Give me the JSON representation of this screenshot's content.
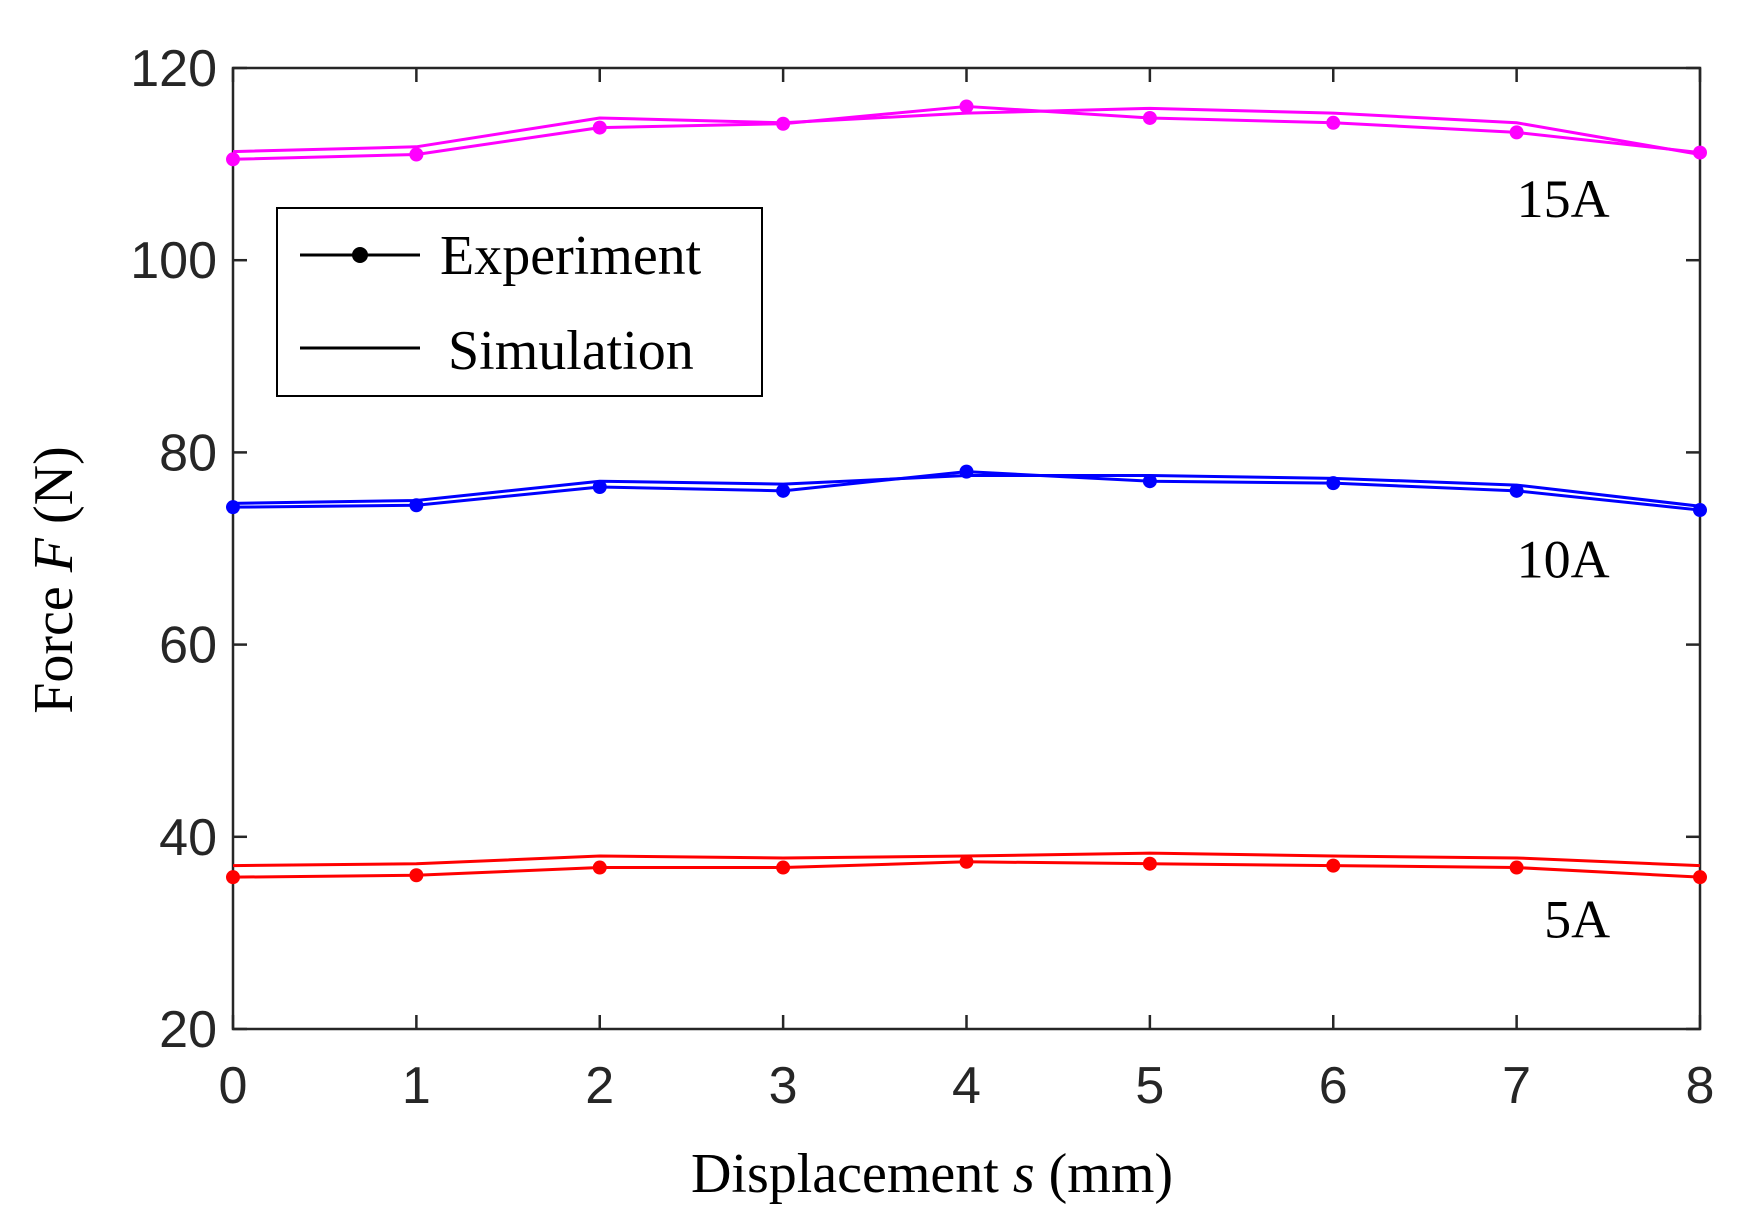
{
  "chart_data": {
    "type": "line",
    "xlabel_prefix": "Displacement ",
    "xlabel_var": "s",
    "xlabel_suffix": " (mm)",
    "ylabel_prefix": "Force ",
    "ylabel_var": "F",
    "ylabel_suffix": " (N)",
    "xlim": [
      0,
      8
    ],
    "ylim": [
      20,
      120
    ],
    "xticks": [
      "0",
      "1",
      "2",
      "3",
      "4",
      "5",
      "6",
      "7",
      "8"
    ],
    "yticks": [
      "20",
      "40",
      "60",
      "80",
      "100",
      "120"
    ],
    "x": [
      0,
      1,
      2,
      3,
      4,
      5,
      6,
      7,
      8
    ],
    "legend": {
      "position": "upper-left",
      "experiment_label": "Experiment",
      "simulation_label": "Simulation"
    },
    "series": [
      {
        "name": "15A Experiment",
        "group": "15A",
        "kind": "experiment",
        "color": "#ff00ff",
        "values": [
          110.5,
          111.0,
          113.8,
          114.2,
          116.0,
          114.8,
          114.3,
          113.3,
          111.2
        ]
      },
      {
        "name": "15A Simulation",
        "group": "15A",
        "kind": "simulation",
        "color": "#ff00ff",
        "values": [
          111.3,
          111.8,
          114.8,
          114.3,
          115.3,
          115.8,
          115.3,
          114.3,
          111.0
        ]
      },
      {
        "name": "10A Experiment",
        "group": "10A",
        "kind": "experiment",
        "color": "#0000ff",
        "values": [
          74.3,
          74.5,
          76.4,
          76.0,
          78.0,
          77.0,
          76.8,
          76.0,
          74.0
        ]
      },
      {
        "name": "10A Simulation",
        "group": "10A",
        "kind": "simulation",
        "color": "#0000ff",
        "values": [
          74.7,
          75.0,
          77.0,
          76.7,
          77.6,
          77.6,
          77.3,
          76.6,
          74.4
        ]
      },
      {
        "name": "5A Experiment",
        "group": "5A",
        "kind": "experiment",
        "color": "#ff0000",
        "values": [
          35.8,
          36.0,
          36.8,
          36.8,
          37.4,
          37.2,
          37.0,
          36.8,
          35.8
        ]
      },
      {
        "name": "5A Simulation",
        "group": "5A",
        "kind": "simulation",
        "color": "#ff0000",
        "values": [
          37.0,
          37.2,
          38.0,
          37.8,
          38.0,
          38.3,
          38.0,
          37.8,
          37.0
        ]
      }
    ],
    "annotations": [
      {
        "text": "15A",
        "x": 7.0,
        "y": 104.5
      },
      {
        "text": "10A",
        "x": 7.0,
        "y": 67.0
      },
      {
        "text": "5A",
        "x": 7.15,
        "y": 29.5
      }
    ]
  }
}
